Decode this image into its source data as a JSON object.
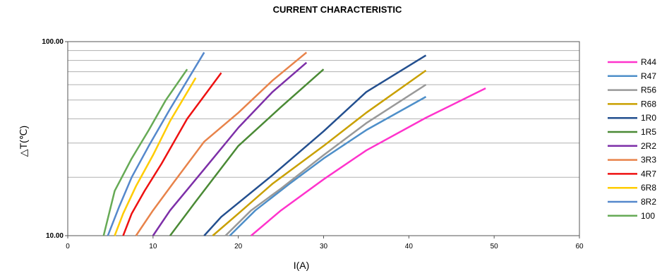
{
  "chart_data": {
    "type": "line",
    "title": "CURRENT CHARACTERISTIC",
    "xlabel": "I(A)",
    "ylabel": "△T(℃)",
    "xlim": [
      0,
      60
    ],
    "ylim": [
      10,
      100
    ],
    "yscale": "log",
    "x_ticks": [
      "0",
      "10",
      "20",
      "30",
      "40",
      "50",
      "60"
    ],
    "y_ticks": [
      "10.00",
      "100.00"
    ],
    "grid": "horizontal",
    "legend_position": "right",
    "series": [
      {
        "name": "R44",
        "color": "#ff33cc",
        "x": [
          21.5,
          25,
          30,
          35,
          42,
          49
        ],
        "y": [
          10,
          13.5,
          19.5,
          27.5,
          40.5,
          57.5
        ]
      },
      {
        "name": "R47",
        "color": "#4e8fc9",
        "x": [
          19,
          22,
          26,
          30,
          35,
          42
        ],
        "y": [
          10,
          13.5,
          18.5,
          25,
          35,
          52
        ]
      },
      {
        "name": "R56",
        "color": "#999999",
        "x": [
          18.5,
          21.5,
          25,
          30,
          35,
          42
        ],
        "y": [
          10,
          13.5,
          17.5,
          26,
          38,
          60
        ]
      },
      {
        "name": "R68",
        "color": "#c9a000",
        "x": [
          17,
          20,
          24,
          30,
          35,
          42
        ],
        "y": [
          10,
          13,
          18.5,
          29,
          43,
          71
        ]
      },
      {
        "name": "1R0",
        "color": "#234f8f",
        "x": [
          16,
          18,
          24,
          30,
          35,
          42
        ],
        "y": [
          10,
          12.5,
          20.5,
          34.5,
          55,
          85
        ]
      },
      {
        "name": "1R5",
        "color": "#4a8a35",
        "x": [
          12,
          15,
          20,
          25,
          30
        ],
        "y": [
          10,
          15,
          29,
          46,
          72
        ]
      },
      {
        "name": "2R2",
        "color": "#7d2fa8",
        "x": [
          10,
          12,
          16,
          20,
          24,
          28
        ],
        "y": [
          10,
          13.5,
          22,
          36,
          55,
          78
        ]
      },
      {
        "name": "3R3",
        "color": "#e8834a",
        "x": [
          8,
          10,
          12.5,
          16,
          20,
          24,
          28
        ],
        "y": [
          10,
          13.5,
          19,
          30.5,
          43,
          63,
          88
        ]
      },
      {
        "name": "4R7",
        "color": "#ee1111",
        "x": [
          6.5,
          7.5,
          9,
          11,
          14,
          18
        ],
        "y": [
          10,
          13,
          17,
          23.5,
          40,
          69
        ]
      },
      {
        "name": "6R8",
        "color": "#ffcc00",
        "x": [
          5.5,
          6.5,
          8,
          10,
          12,
          15
        ],
        "y": [
          10,
          13,
          18,
          26,
          39,
          65
        ]
      },
      {
        "name": "8R2",
        "color": "#5588cc",
        "x": [
          4.7,
          6,
          7.5,
          9.5,
          12,
          16
        ],
        "y": [
          10,
          14,
          20,
          29,
          45,
          88
        ]
      },
      {
        "name": "100",
        "color": "#66aa55",
        "x": [
          4.2,
          5.5,
          7.5,
          9.5,
          11.5,
          14
        ],
        "y": [
          10,
          17,
          25,
          35,
          50,
          72
        ]
      }
    ]
  }
}
